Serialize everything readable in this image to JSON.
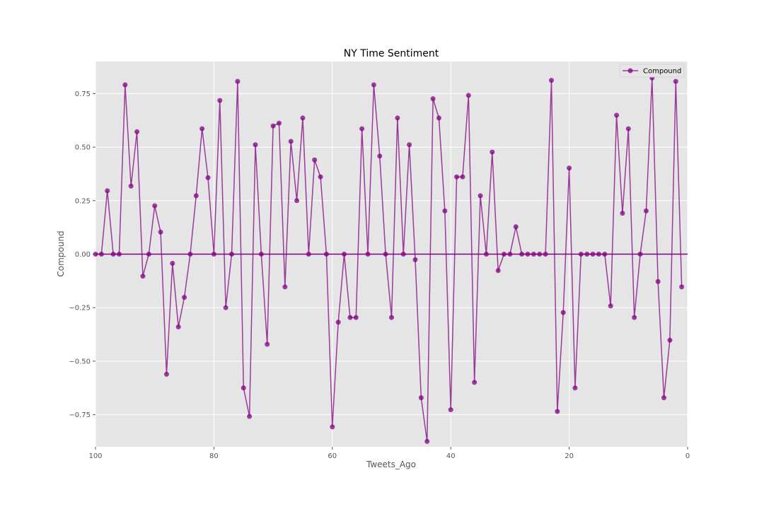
{
  "chart_data": {
    "type": "line",
    "title": "NY Time Sentiment",
    "xlabel": "Tweets_Ago",
    "ylabel": "Compound",
    "xlim": [
      100,
      0
    ],
    "ylim": [
      -0.9,
      0.9
    ],
    "xticks": [
      100,
      80,
      60,
      40,
      20,
      0
    ],
    "yticks": [
      0.75,
      0.5,
      0.25,
      0.0,
      -0.25,
      -0.5,
      -0.75
    ],
    "ytick_labels": [
      "0.75",
      "0.50",
      "0.25",
      "0.00",
      "−0.25",
      "−0.50",
      "−0.75"
    ],
    "grid": true,
    "legend_position": "top-right",
    "reference_line_y": 0,
    "series": [
      {
        "name": "Compound",
        "color": "#800080",
        "marker": "circle",
        "x": [
          100,
          99,
          98,
          97,
          96,
          95,
          94,
          93,
          92,
          91,
          90,
          89,
          88,
          87,
          86,
          85,
          84,
          83,
          82,
          81,
          80,
          79,
          78,
          77,
          76,
          75,
          74,
          73,
          72,
          71,
          70,
          69,
          68,
          67,
          66,
          65,
          64,
          63,
          62,
          61,
          60,
          59,
          58,
          57,
          56,
          55,
          54,
          53,
          52,
          51,
          50,
          49,
          48,
          47,
          46,
          45,
          44,
          43,
          42,
          41,
          40,
          39,
          38,
          37,
          36,
          35,
          34,
          33,
          32,
          31,
          30,
          29,
          28,
          27,
          26,
          25,
          24,
          23,
          22,
          21,
          20,
          19,
          18,
          17,
          16,
          15,
          14,
          13,
          12,
          11,
          10,
          9,
          8,
          7,
          6,
          5,
          4,
          3,
          2,
          1
        ],
        "y": [
          0,
          0,
          0.296,
          0,
          0,
          0.791,
          0.318,
          0.572,
          -0.103,
          0,
          0.226,
          0.103,
          -0.561,
          -0.043,
          -0.34,
          -0.202,
          0,
          0.273,
          0.586,
          0.357,
          0,
          0.718,
          -0.25,
          0,
          0.807,
          -0.625,
          -0.758,
          0.511,
          0,
          -0.421,
          0.599,
          0.612,
          -0.153,
          0.527,
          0.25,
          0.636,
          0,
          0.44,
          0.361,
          0,
          -0.807,
          -0.318,
          0,
          -0.296,
          -0.296,
          0.586,
          0,
          0.791,
          0.458,
          0,
          -0.296,
          0.636,
          0,
          0.511,
          -0.026,
          -0.671,
          -0.875,
          0.726,
          0.636,
          0.202,
          -0.727,
          0.361,
          0.361,
          0.742,
          -0.599,
          0.273,
          0,
          0.477,
          -0.077,
          0,
          0,
          0.128,
          0,
          0,
          0,
          0,
          0,
          0.812,
          -0.735,
          -0.273,
          0.402,
          -0.625,
          0,
          0,
          0,
          0,
          0,
          -0.242,
          0.649,
          0.191,
          0.586,
          -0.296,
          0,
          0.202,
          0.823,
          -0.128,
          -0.671,
          -0.402,
          0.807,
          -0.153
        ]
      }
    ]
  }
}
